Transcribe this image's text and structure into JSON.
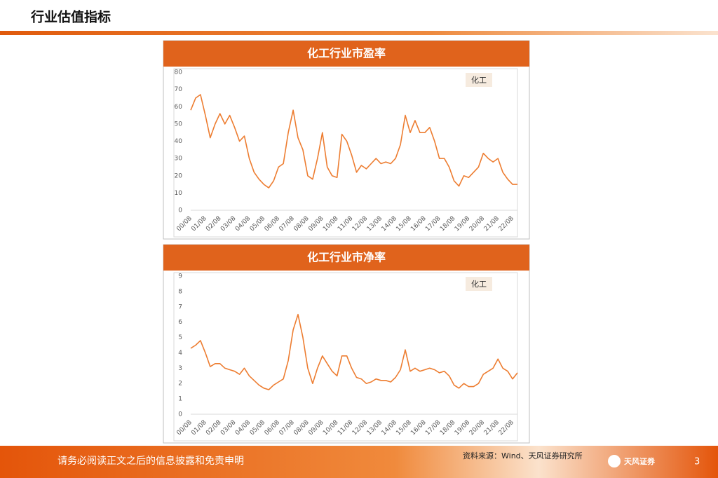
{
  "header": {
    "title": "行业估值指标"
  },
  "chart_data": [
    {
      "type": "line",
      "title": "化工行业市盈率",
      "categories": [
        "00/08",
        null,
        null,
        "01/08",
        null,
        null,
        "02/08",
        null,
        null,
        "03/08",
        null,
        null,
        "04/08",
        null,
        null,
        "05/08",
        null,
        null,
        "06/08",
        null,
        null,
        "07/08",
        null,
        null,
        "08/08",
        null,
        null,
        "09/08",
        null,
        null,
        "10/08",
        null,
        null,
        "11/08",
        null,
        null,
        "12/08",
        null,
        null,
        "13/08",
        null,
        null,
        "14/08",
        null,
        null,
        "15/08",
        null,
        null,
        "16/08",
        null,
        null,
        "17/08",
        null,
        null,
        "18/08",
        null,
        null,
        "19/08",
        null,
        null,
        "20/08",
        null,
        null,
        "21/08",
        null,
        null,
        "22/08",
        null
      ],
      "series": [
        {
          "name": "化工",
          "color": "#ed7d31",
          "values": [
            58,
            65,
            67,
            55,
            42,
            50,
            56,
            50,
            55,
            48,
            40,
            43,
            30,
            22,
            18,
            15,
            13,
            17,
            25,
            27,
            45,
            58,
            42,
            35,
            20,
            18,
            30,
            45,
            25,
            20,
            19,
            44,
            40,
            32,
            22,
            26,
            24,
            27,
            30,
            27,
            28,
            27,
            30,
            38,
            55,
            45,
            52,
            45,
            45,
            48,
            40,
            30,
            30,
            25,
            17,
            14,
            20,
            19,
            22,
            25,
            33,
            30,
            28,
            30,
            22,
            18,
            15,
            15
          ]
        }
      ],
      "ylim": [
        0,
        80
      ],
      "yticks": [
        0,
        10,
        20,
        30,
        40,
        50,
        60,
        70,
        80
      ],
      "grid": false
    },
    {
      "type": "line",
      "title": "化工行业市净率",
      "categories": [
        "00/08",
        null,
        null,
        "01/08",
        null,
        null,
        "02/08",
        null,
        null,
        "03/08",
        null,
        null,
        "04/08",
        null,
        null,
        "05/08",
        null,
        null,
        "06/08",
        null,
        null,
        "07/08",
        null,
        null,
        "08/08",
        null,
        null,
        "09/08",
        null,
        null,
        "10/08",
        null,
        null,
        "11/08",
        null,
        null,
        "12/08",
        null,
        null,
        "13/08",
        null,
        null,
        "14/08",
        null,
        null,
        "15/08",
        null,
        null,
        "16/08",
        null,
        null,
        "17/08",
        null,
        null,
        "18/08",
        null,
        null,
        "19/08",
        null,
        null,
        "20/08",
        null,
        null,
        "21/08",
        null,
        null,
        "22/08",
        null
      ],
      "series": [
        {
          "name": "化工",
          "color": "#ed7d31",
          "values": [
            4.3,
            4.5,
            4.8,
            4.0,
            3.1,
            3.3,
            3.3,
            3.0,
            2.9,
            2.8,
            2.6,
            3.0,
            2.5,
            2.2,
            1.9,
            1.7,
            1.6,
            1.9,
            2.1,
            2.3,
            3.5,
            5.5,
            6.5,
            5.0,
            3.0,
            2.0,
            3.0,
            3.8,
            3.3,
            2.8,
            2.5,
            3.8,
            3.8,
            3.0,
            2.4,
            2.3,
            2.0,
            2.1,
            2.3,
            2.2,
            2.2,
            2.1,
            2.4,
            2.9,
            4.2,
            2.8,
            3.0,
            2.8,
            2.9,
            3.0,
            2.9,
            2.7,
            2.8,
            2.5,
            1.9,
            1.7,
            2.0,
            1.8,
            1.8,
            2.0,
            2.6,
            2.8,
            3.0,
            3.6,
            3.0,
            2.8,
            2.3,
            2.7
          ]
        }
      ],
      "ylim": [
        0,
        9
      ],
      "yticks": [
        0,
        1,
        2,
        3,
        4,
        5,
        6,
        7,
        8,
        9
      ],
      "grid": false
    }
  ],
  "footer": {
    "disclaimer": "请务必阅读正文之后的信息披露和免责申明",
    "source": "资料来源：Wind、天风证券研究所",
    "logo": "天风证券",
    "page": "3"
  }
}
